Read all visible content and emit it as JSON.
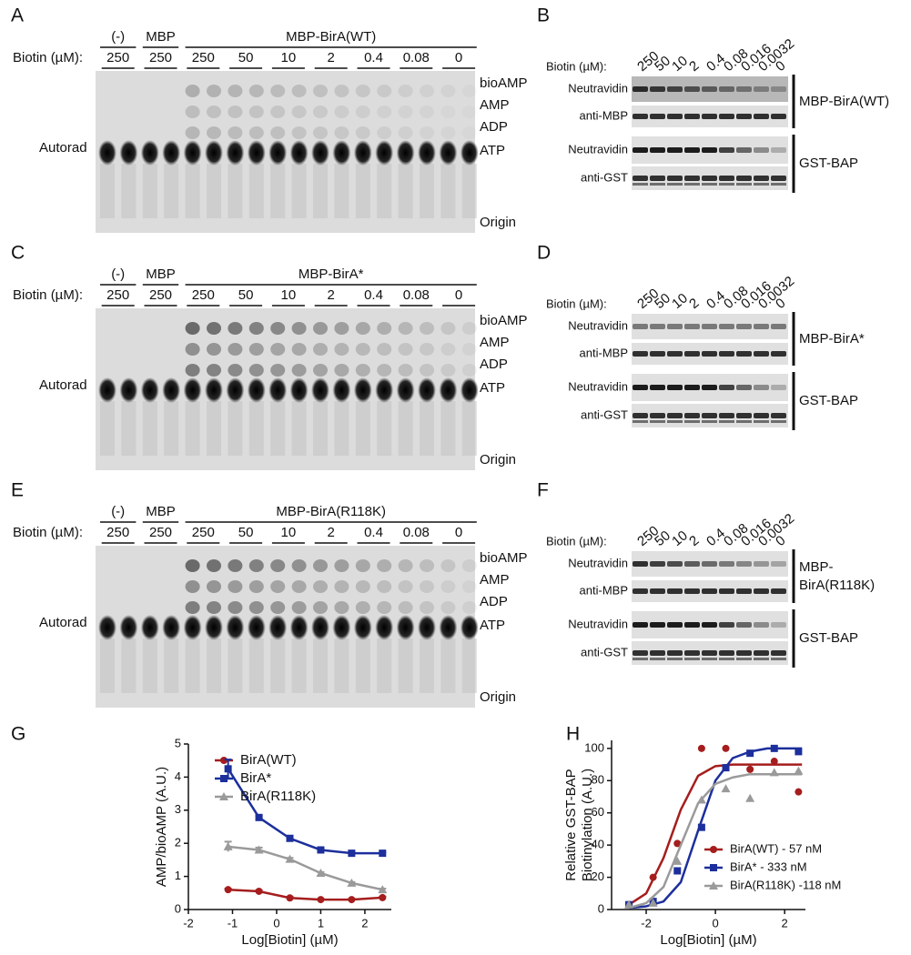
{
  "gels": [
    {
      "letter": "A",
      "biotin_label": "Biotin (µM):",
      "side_label": "Autorad",
      "groups": [
        {
          "label": "(-)",
          "lanes": [
            "250"
          ]
        },
        {
          "label": "MBP",
          "lanes": [
            "250"
          ]
        },
        {
          "label": "MBP-BirA(WT)",
          "lanes": [
            "250",
            "50",
            "10",
            "2",
            "0.4",
            "0.08",
            "0"
          ]
        }
      ],
      "spots": [
        "bioAMP",
        "AMP",
        "ADP",
        "ATP",
        "Origin"
      ]
    },
    {
      "letter": "C",
      "biotin_label": "Biotin (µM):",
      "side_label": "Autorad",
      "groups": [
        {
          "label": "(-)",
          "lanes": [
            "250"
          ]
        },
        {
          "label": "MBP",
          "lanes": [
            "250"
          ]
        },
        {
          "label": "MBP-BirA*",
          "lanes": [
            "250",
            "50",
            "10",
            "2",
            "0.4",
            "0.08",
            "0"
          ]
        }
      ],
      "spots": [
        "bioAMP",
        "AMP",
        "ADP",
        "ATP",
        "Origin"
      ]
    },
    {
      "letter": "E",
      "biotin_label": "Biotin (µM):",
      "side_label": "Autorad",
      "groups": [
        {
          "label": "(-)",
          "lanes": [
            "250"
          ]
        },
        {
          "label": "MBP",
          "lanes": [
            "250"
          ]
        },
        {
          "label": "MBP-BirA(R118K)",
          "lanes": [
            "250",
            "50",
            "10",
            "2",
            "0.4",
            "0.08",
            "0"
          ]
        }
      ],
      "spots": [
        "bioAMP",
        "AMP",
        "ADP",
        "ATP",
        "Origin"
      ]
    }
  ],
  "blots": [
    {
      "letter": "B",
      "biotin_label": "Biotin (µM):",
      "lanes": [
        "250",
        "50",
        "10",
        "2",
        "0.4",
        "0.08",
        "0.016",
        "0.0032",
        "0"
      ],
      "rows": [
        "Neutravidin",
        "anti-MBP",
        "Neutravidin",
        "anti-GST"
      ],
      "brackets": [
        [
          "MBP-BirA(WT)"
        ],
        [
          "GST-BAP"
        ]
      ]
    },
    {
      "letter": "D",
      "biotin_label": "Biotin (µM):",
      "lanes": [
        "250",
        "50",
        "10",
        "2",
        "0.4",
        "0.08",
        "0.016",
        "0.0032",
        "0"
      ],
      "rows": [
        "Neutravidin",
        "anti-MBP",
        "Neutravidin",
        "anti-GST"
      ],
      "brackets": [
        [
          "MBP-BirA*"
        ],
        [
          "GST-BAP"
        ]
      ]
    },
    {
      "letter": "F",
      "biotin_label": "Biotin (µM):",
      "lanes": [
        "250",
        "50",
        "10",
        "2",
        "0.4",
        "0.08",
        "0.016",
        "0.0032",
        "0"
      ],
      "rows": [
        "Neutravidin",
        "anti-MBP",
        "Neutravidin",
        "anti-GST"
      ],
      "brackets": [
        [
          "MBP-",
          "BirA(R118K)"
        ],
        [
          "GST-BAP"
        ]
      ]
    }
  ],
  "chart_data": [
    {
      "type": "line",
      "letter": "G",
      "xlabel": "Log[Biotin] (µM)",
      "ylabel": "AMP/bioAMP (A.U.)",
      "x": [
        -1.1,
        -0.4,
        0.3,
        1.0,
        1.7,
        2.4
      ],
      "xlim": [
        -2,
        2.6
      ],
      "xticks": [
        -2,
        -1,
        0,
        1,
        2
      ],
      "ylim": [
        0,
        5
      ],
      "yticks": [
        0,
        1,
        2,
        3,
        4,
        5
      ],
      "series": [
        {
          "name": "BirA(WT)",
          "color": "#a51d1d",
          "marker": "circle",
          "values": [
            0.6,
            0.55,
            0.35,
            0.3,
            0.3,
            0.36
          ],
          "errors": [
            0.03,
            0.03,
            0.03,
            0.02,
            0.02,
            0.03
          ]
        },
        {
          "name": "BirA*",
          "color": "#1c2f9c",
          "marker": "square",
          "values": [
            4.25,
            2.78,
            2.15,
            1.8,
            1.7,
            1.7
          ],
          "errors": [
            0.28,
            0.05,
            0.04,
            0.03,
            0.03,
            0.03
          ]
        },
        {
          "name": "BirA(R118K)",
          "color": "#9a9a9a",
          "marker": "triangle",
          "values": [
            1.9,
            1.8,
            1.52,
            1.1,
            0.8,
            0.6
          ],
          "errors": [
            0.15,
            0.07,
            0.04,
            0.03,
            0.03,
            0.03
          ]
        }
      ]
    },
    {
      "type": "scatter",
      "letter": "H",
      "xlabel": "Log[Biotin] (µM)",
      "ylabel": [
        "Relative GST-BAP",
        "Biotinylation (A.U.)"
      ],
      "x": [
        -2.5,
        -1.8,
        -1.1,
        -0.4,
        0.3,
        1.0,
        1.7,
        2.4
      ],
      "fit_x": [
        -2.5,
        -2,
        -1.5,
        -1,
        -0.5,
        0,
        0.5,
        1,
        1.5,
        2,
        2.5
      ],
      "xlim": [
        -3,
        2.6
      ],
      "xticks": [
        -2,
        0,
        2
      ],
      "ylim": [
        0,
        105
      ],
      "yticks": [
        0,
        20,
        40,
        60,
        80,
        100
      ],
      "series": [
        {
          "name": "BirA(WT) - 57 nM",
          "color": "#a51d1d",
          "marker": "circle",
          "values": [
            3,
            20,
            41,
            100,
            100,
            87,
            92,
            73
          ],
          "fit_values": [
            3,
            10,
            32,
            62,
            83,
            89,
            90,
            90,
            90,
            90,
            90
          ]
        },
        {
          "name": "BirA* - 333 nM",
          "color": "#1c2f9c",
          "marker": "square",
          "values": [
            3,
            5,
            24,
            51,
            88,
            97,
            100,
            98
          ],
          "fit_values": [
            1,
            2,
            5,
            17,
            49,
            80,
            94,
            98,
            100,
            100,
            100
          ]
        },
        {
          "name": "BirA(R118K) -118 nM",
          "color": "#9a9a9a",
          "marker": "triangle",
          "values": [
            3,
            4,
            30,
            68,
            75,
            69,
            85,
            86
          ],
          "fit_values": [
            1,
            4,
            14,
            40,
            66,
            78,
            82,
            84,
            84,
            84,
            84
          ]
        }
      ]
    }
  ]
}
